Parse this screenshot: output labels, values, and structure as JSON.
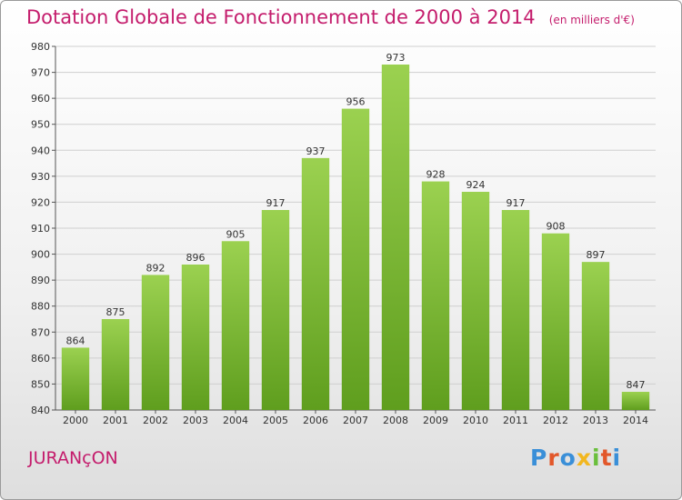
{
  "title": "Dotation Globale de Fonctionnement de 2000 à 2014",
  "unit_note": "(en milliers d'€)",
  "commune": "JURANçON",
  "logo": {
    "text": "Proxiti",
    "colors": [
      "#3a8fd8",
      "#e2572a",
      "#3a8fd8",
      "#f2b71f",
      "#6abf3c",
      "#e2572a",
      "#3a8fd8"
    ]
  },
  "colors": {
    "title": "#c41c6c",
    "bar_top": "#9bd150",
    "bar_bottom": "#5f9e1e"
  },
  "chart_data": {
    "type": "bar",
    "categories": [
      "2000",
      "2001",
      "2002",
      "2003",
      "2004",
      "2005",
      "2006",
      "2007",
      "2008",
      "2009",
      "2010",
      "2011",
      "2012",
      "2013",
      "2014"
    ],
    "values": [
      864,
      875,
      892,
      896,
      905,
      917,
      937,
      956,
      973,
      928,
      924,
      917,
      908,
      897,
      847
    ],
    "ylim": [
      840,
      980
    ],
    "yticks": [
      840,
      850,
      860,
      870,
      880,
      890,
      900,
      910,
      920,
      930,
      940,
      950,
      960,
      970,
      980
    ],
    "grid": true,
    "title": "Dotation Globale de Fonctionnement de 2000 à 2014",
    "xlabel": "",
    "ylabel": ""
  }
}
